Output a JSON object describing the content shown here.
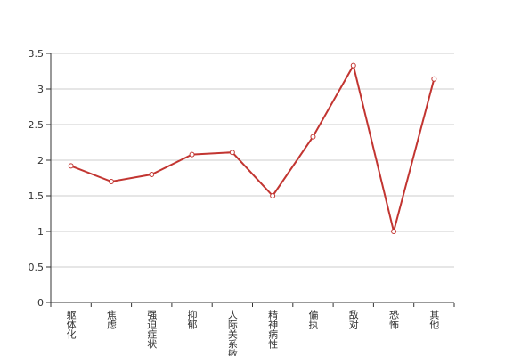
{
  "chart_data": {
    "type": "line",
    "categories": [
      "躯体化",
      "焦虑",
      "强迫症状",
      "抑郁",
      "人际关系敏感",
      "精神病性",
      "偏执",
      "敌对",
      "恐怖",
      "其他"
    ],
    "series": [
      {
        "color": "#c23531",
        "values": [
          1.92,
          1.7,
          1.8,
          2.08,
          2.11,
          1.5,
          2.33,
          3.33,
          1.0,
          3.14
        ]
      }
    ],
    "ylim": [
      0,
      3.5
    ],
    "yticks": [
      0,
      0.5,
      1,
      1.5,
      2,
      2.5,
      3,
      3.5
    ],
    "grid": true
  }
}
